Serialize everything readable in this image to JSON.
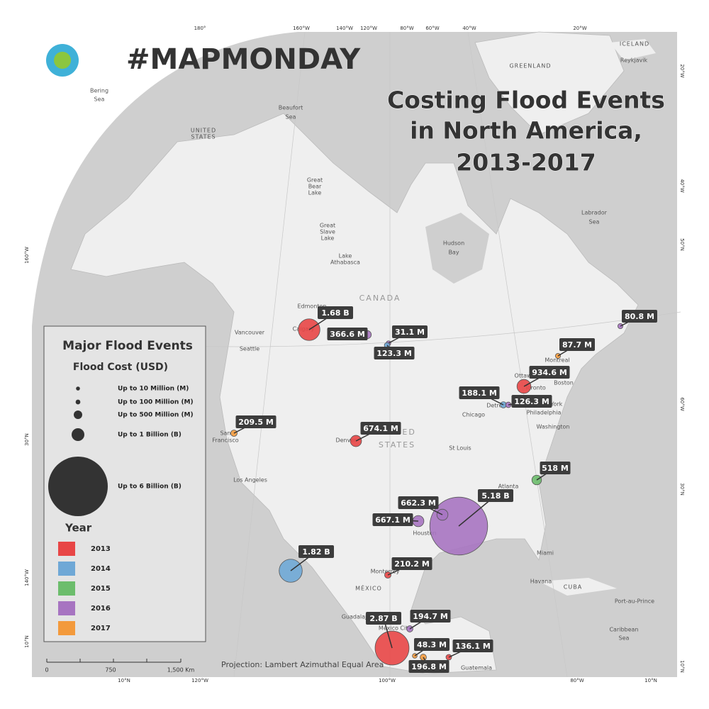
{
  "header": {
    "tag": "#MAPMONDAY",
    "title_lines": [
      "Costing Flood Events",
      "in North America,",
      "2013-2017"
    ]
  },
  "legend": {
    "title": "Major Flood Events",
    "size_title": "Flood Cost (USD)",
    "sizes": [
      {
        "label": "Up to 10 Million (M)",
        "value": 10
      },
      {
        "label": "Up to 100 Million (M)",
        "value": 100
      },
      {
        "label": "Up to 500 Million (M)",
        "value": 500
      },
      {
        "label": "Up to 1 Billion (B)",
        "value": 1000
      },
      {
        "label": "Up to 6 Billion (B)",
        "value": 6000
      }
    ],
    "year_title": "Year",
    "years": [
      {
        "label": "2013",
        "color": "#e84646"
      },
      {
        "label": "2014",
        "color": "#6fa8d6"
      },
      {
        "label": "2015",
        "color": "#6cbd6c"
      },
      {
        "label": "2016",
        "color": "#a774c1"
      },
      {
        "label": "2017",
        "color": "#f39a3c"
      }
    ]
  },
  "events": [
    {
      "value": 1680,
      "value_label": "1.68 B",
      "year": 0
    },
    {
      "value": 366.6,
      "value_label": "366.6 M",
      "year": 3
    },
    {
      "value": 31.1,
      "value_label": "31.1 M",
      "year": 3
    },
    {
      "value": 123.3,
      "value_label": "123.3 M",
      "year": 1
    },
    {
      "value": 87.7,
      "value_label": "87.7 M",
      "year": 4
    },
    {
      "value": 80.8,
      "value_label": "80.8 M",
      "year": 3
    },
    {
      "value": 934.6,
      "value_label": "934.6 M",
      "year": 0
    },
    {
      "value": 188.1,
      "value_label": "188.1 M",
      "year": 1
    },
    {
      "value": 126.3,
      "value_label": "126.3 M",
      "year": 3
    },
    {
      "value": 209.5,
      "value_label": "209.5 M",
      "year": 4
    },
    {
      "value": 674.1,
      "value_label": "674.1 M",
      "year": 0
    },
    {
      "value": 518,
      "value_label": "518 M",
      "year": 2
    },
    {
      "value": 5180,
      "value_label": "5.18 B",
      "year": 3
    },
    {
      "value": 662.3,
      "value_label": "662.3 M",
      "year": 3
    },
    {
      "value": 667.1,
      "value_label": "667.1 M",
      "year": 3
    },
    {
      "value": 1820,
      "value_label": "1.82 B",
      "year": 1
    },
    {
      "value": 210.2,
      "value_label": "210.2 M",
      "year": 0
    },
    {
      "value": 2870,
      "value_label": "2.87 B",
      "year": 0
    },
    {
      "value": 194.7,
      "value_label": "194.7 M",
      "year": 3
    },
    {
      "value": 48.3,
      "value_label": "48.3 M",
      "year": 4
    },
    {
      "value": 196.8,
      "value_label": "196.8 M",
      "year": 4
    },
    {
      "value": 136.1,
      "value_label": "136.1 M",
      "year": 0
    }
  ],
  "places": [
    "Bering",
    "Sea",
    "Beaufort",
    "Sea",
    "UNITED",
    "STATES",
    "GREENLAND",
    "ICELAND",
    "Reykjavik",
    "Labrador",
    "Sea",
    "Hudson",
    "Bay",
    "Great",
    "Bear",
    "Lake",
    "Great",
    "Slave",
    "Lake",
    "Lake",
    "Athabasca",
    "Edmonton",
    "Calgary",
    "Vancouver",
    "Seattle",
    "San",
    "Francisco",
    "Los Angeles",
    "Denver",
    "St Louis",
    "Chicago",
    "Detroit",
    "Toronto",
    "Ottawa",
    "Montreal",
    "Boston",
    "New York",
    "Philadelphia",
    "Washington",
    "Atlanta",
    "Houston",
    "Miami",
    "Havana",
    "CUBA",
    "Port-au-Prince",
    "Monterrey",
    "MÉXICO",
    "Guadalajara",
    "Mexico City",
    "Guatemala",
    "Caribbean",
    "Sea"
  ],
  "countries": [
    "CANADA",
    "UNITED",
    "STATES"
  ],
  "graticule": {
    "top": [
      "180°",
      "160°W",
      "140°W",
      "120°W",
      "80°W",
      "60°W",
      "40°W",
      "20°W"
    ],
    "bottom": [
      "10°N",
      "120°W",
      "100°W",
      "80°W",
      "10°N"
    ],
    "left": [
      "160°W",
      "30°N",
      "140°W",
      "10°N"
    ],
    "right": [
      "20°W",
      "40°W",
      "50°N",
      "60°W",
      "30°N",
      "10°N"
    ]
  },
  "scale": [
    "0",
    "750",
    "1,500 Km"
  ],
  "projection": "Projection: Lambert Azimuthal Equal Area"
}
